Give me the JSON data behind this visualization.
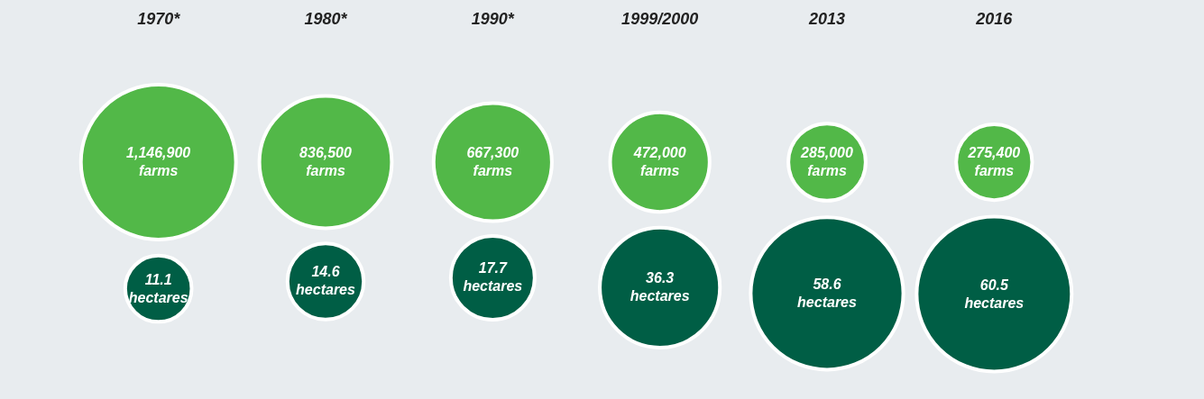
{
  "chart_data": {
    "type": "other",
    "categories": [
      "1970*",
      "1980*",
      "1990*",
      "1999/2000",
      "2013",
      "2016"
    ],
    "series": [
      {
        "color": "#52b848",
        "values": [
          1146900,
          836500,
          667300,
          472000,
          285000,
          275400
        ],
        "value_labels": [
          "1,146,900\nfarms",
          "836,500\nfarms",
          "667,300\nfarms",
          "472,000\nfarms",
          "285,000\nfarms",
          "275,400\nfarms"
        ]
      },
      {
        "color": "#005e45",
        "values": [
          11.1,
          14.6,
          17.7,
          36.3,
          58.6,
          60.5
        ],
        "value_labels": [
          "11.1\nhectares",
          "14.6\nhectares",
          "17.7\nhectares",
          "36.3\nhectares",
          "58.6\nhectares",
          "60.5\nhectares"
        ]
      }
    ]
  }
}
